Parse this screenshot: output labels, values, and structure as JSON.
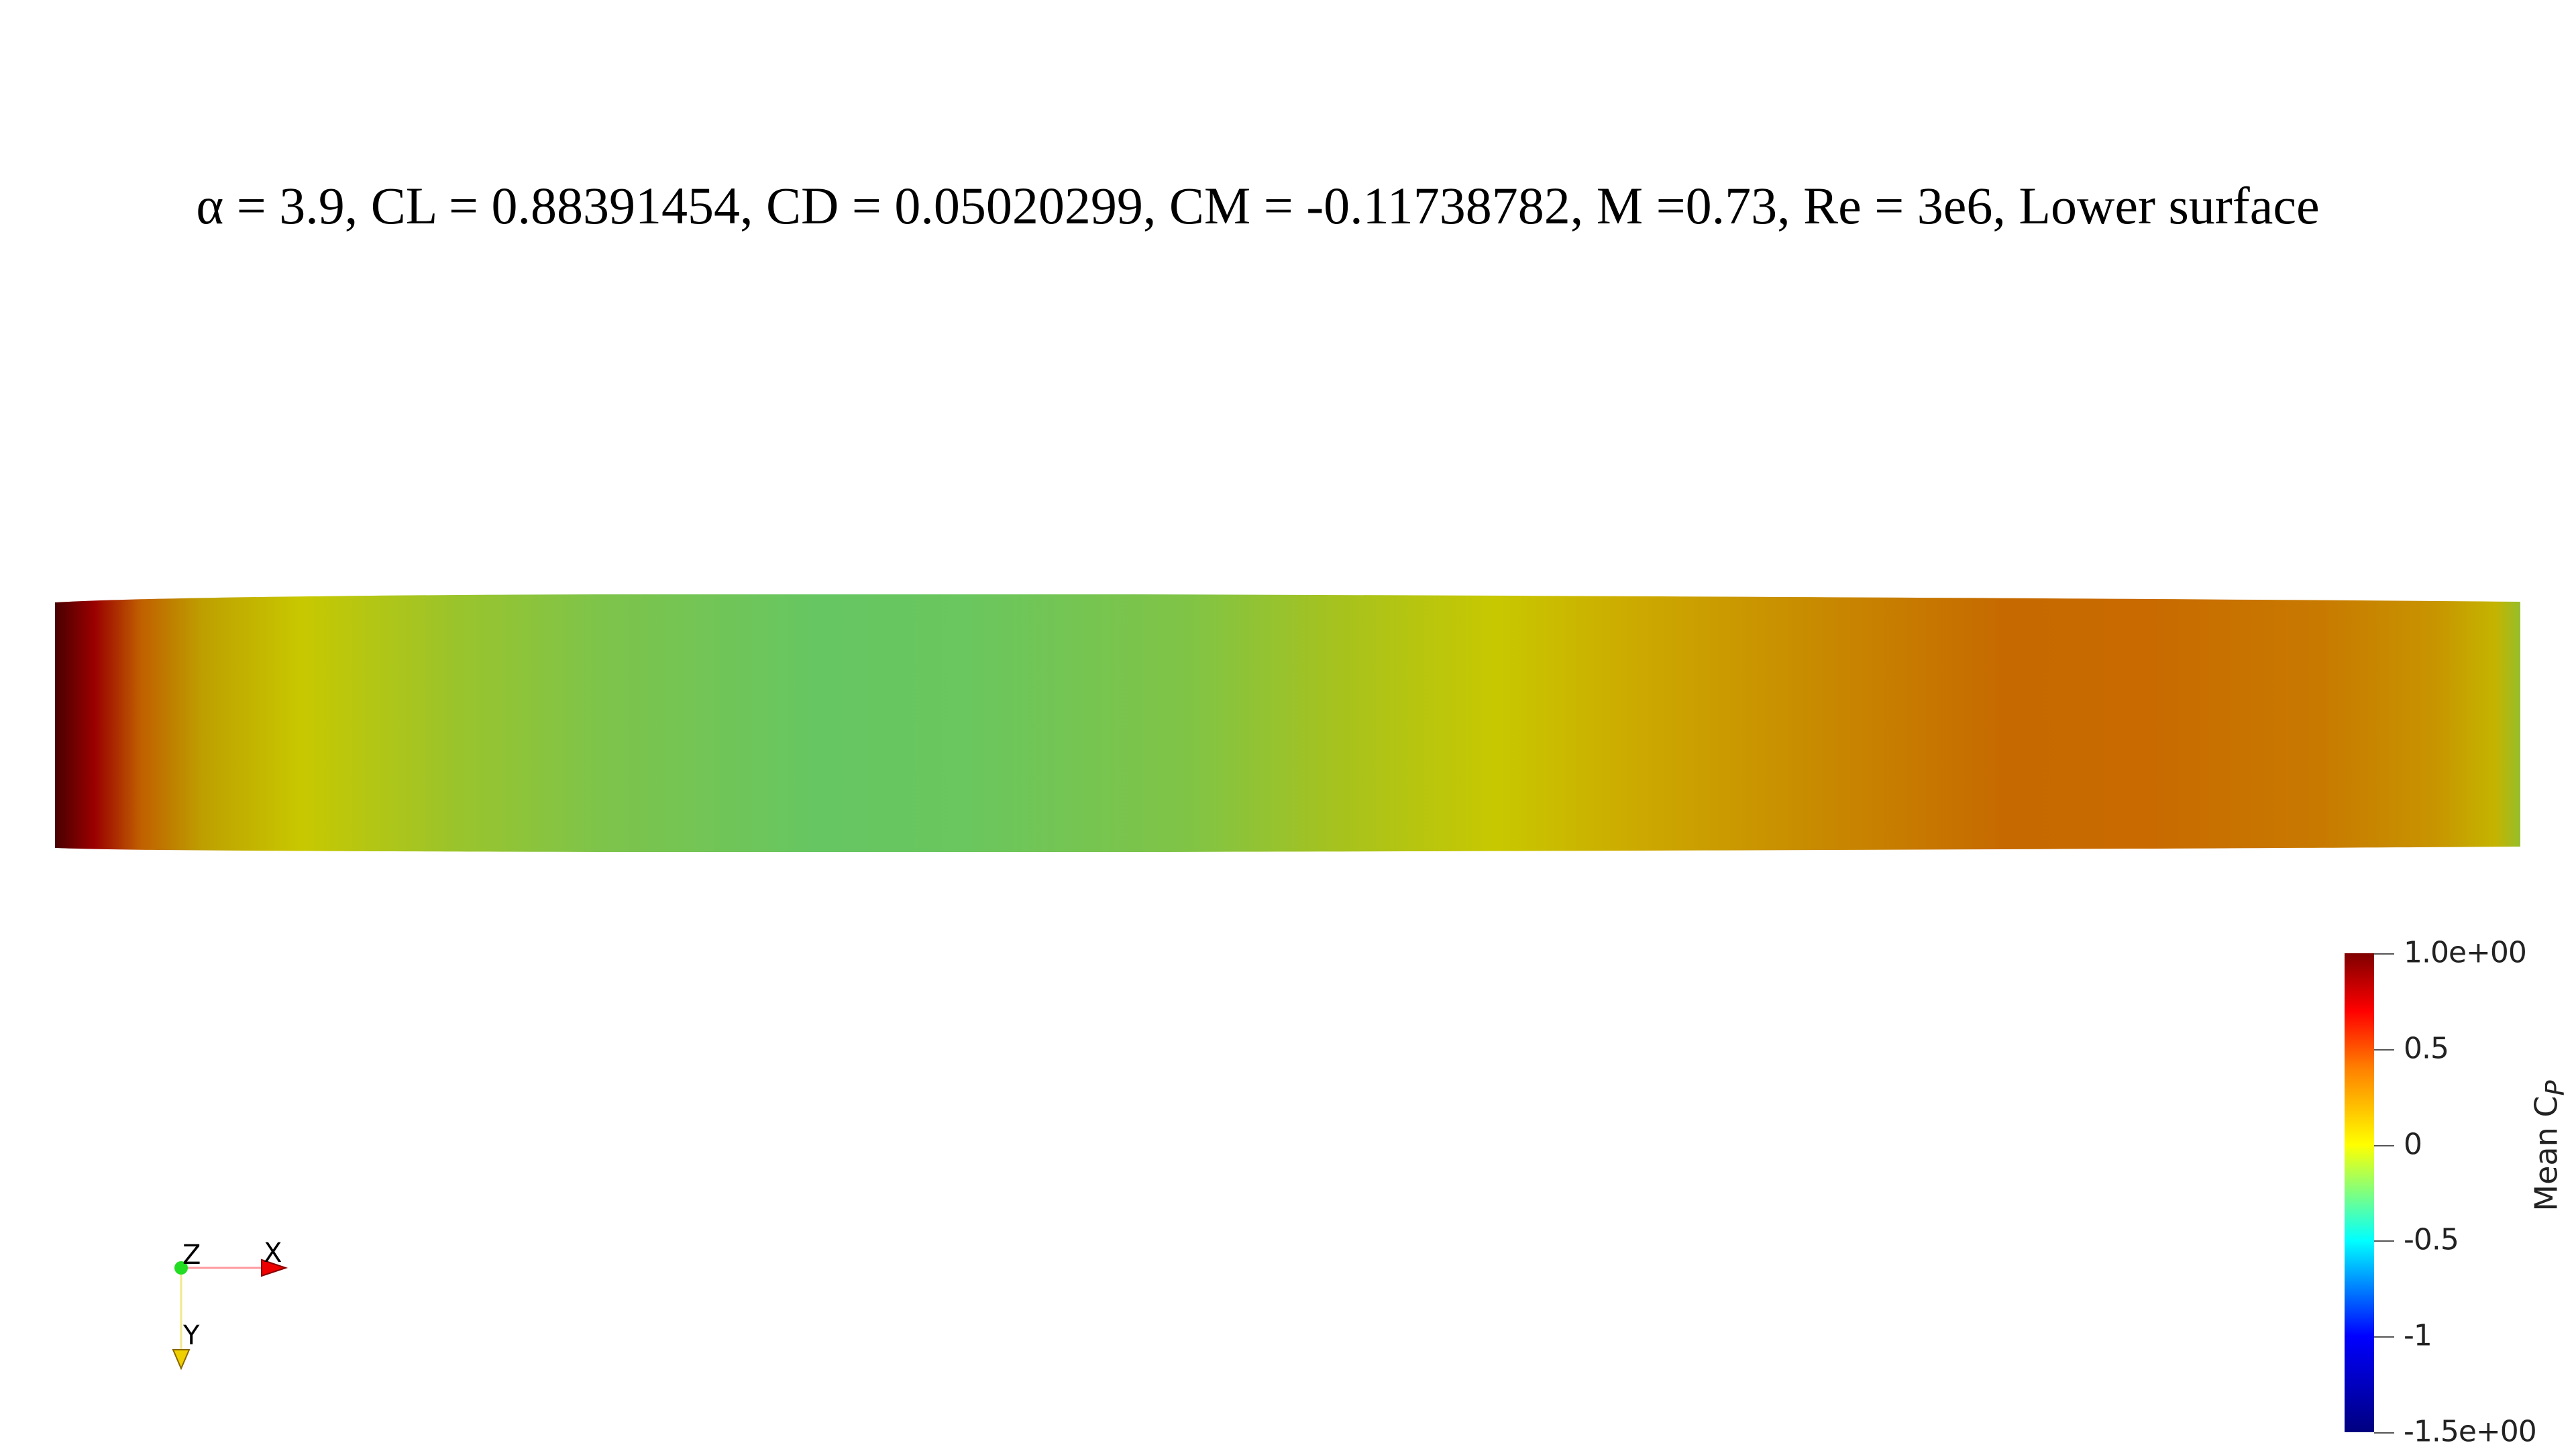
{
  "title": "α = 3.9, CL = 0.88391454, CD = 0.05020299, CM = -0.11738782, M =0.73, Re = 3e6, Lower surface",
  "colorbar": {
    "title_main": "Mean C",
    "title_sub": "P",
    "range": [
      -1.5,
      1.0
    ],
    "ticks": [
      {
        "value": 1.0,
        "label": "1.0e+00"
      },
      {
        "value": 0.5,
        "label": "0.5"
      },
      {
        "value": 0.0,
        "label": "0"
      },
      {
        "value": -0.5,
        "label": "-0.5"
      },
      {
        "value": -1.0,
        "label": "-1"
      },
      {
        "value": -1.5,
        "label": "-1.5e+00"
      }
    ],
    "colors": {
      "min": "#00007f",
      "low": "#0000ff",
      "mid_low": "#00ffff",
      "mid": "#ffff00",
      "high": "#ff0000",
      "max": "#7f0000"
    }
  },
  "orientation_axes": {
    "x_label": "X",
    "y_label": "Y",
    "z_label": "Z",
    "x_color": "#ff0000",
    "y_color": "#ffff00",
    "z_color": "#00ff00"
  }
}
